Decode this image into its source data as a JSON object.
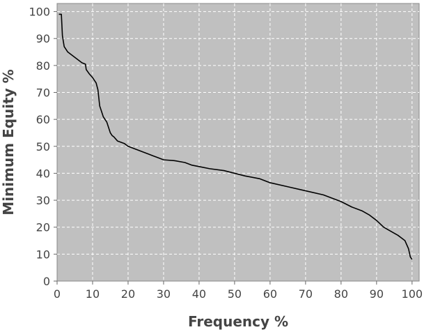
{
  "chart_data": {
    "type": "line",
    "title": "",
    "xlabel": "Frequency %",
    "ylabel": "Minimum Equity %",
    "xlim": [
      0,
      102
    ],
    "ylim": [
      0,
      103
    ],
    "xticks": [
      0,
      10,
      20,
      30,
      40,
      50,
      60,
      70,
      80,
      90,
      100
    ],
    "yticks": [
      0,
      10,
      20,
      30,
      40,
      50,
      60,
      70,
      80,
      90,
      100
    ],
    "grid": true,
    "colors": {
      "plot_background": "#c0c0c0",
      "grid": "#ffffff",
      "line": "#000000",
      "text": "#444444"
    },
    "series": [
      {
        "name": "Minimum Equity",
        "x": [
          0.5,
          1.2,
          1.5,
          2,
          3,
          4,
          5,
          6,
          7,
          8,
          8.2,
          9,
          10,
          11,
          11.5,
          12,
          12.5,
          13,
          14,
          15,
          15.5,
          16,
          17,
          18,
          19,
          20,
          22,
          24,
          26,
          27,
          28,
          30,
          33,
          36,
          38,
          40,
          43,
          47,
          50,
          53,
          57,
          60,
          65,
          70,
          75,
          80,
          83,
          86,
          88,
          90,
          92,
          94,
          96,
          97,
          98,
          99,
          99.5,
          100
        ],
        "y": [
          99,
          99,
          91,
          87,
          85,
          84,
          83,
          82,
          81,
          80.5,
          78.5,
          77,
          75.5,
          73.5,
          71,
          65,
          63,
          61,
          59,
          55,
          54,
          53.5,
          52,
          51.5,
          51,
          50,
          49,
          48,
          47,
          46.5,
          46,
          45,
          44.7,
          44,
          43,
          42.5,
          41.7,
          41,
          40,
          39,
          38,
          36.5,
          35,
          33.5,
          32,
          29.5,
          27.5,
          26,
          24.5,
          22.5,
          20,
          18.5,
          17,
          16,
          15,
          12,
          9,
          8
        ]
      }
    ]
  }
}
